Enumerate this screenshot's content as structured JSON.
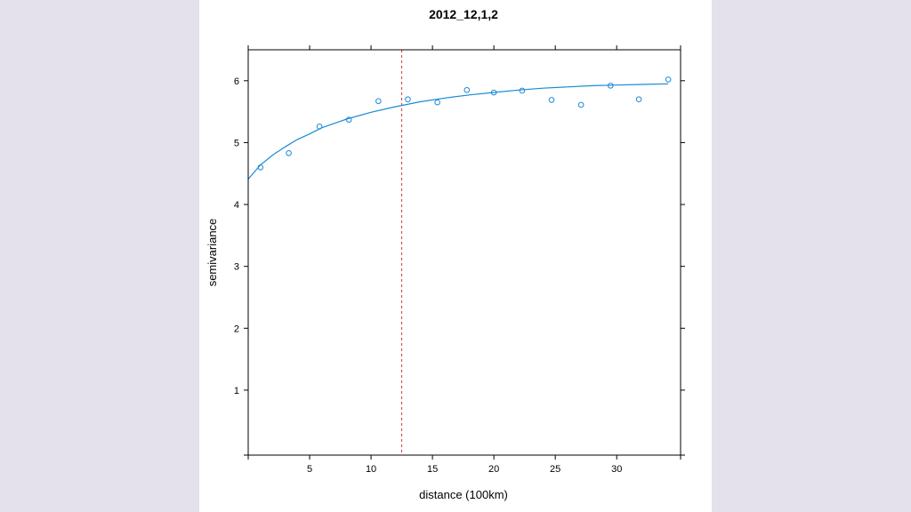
{
  "colors": {
    "page_background": "#e4e0ec",
    "plot_background": "#ffffff",
    "series": "#1a8ad4",
    "reference_line": "#e0322c"
  },
  "chart_data": {
    "type": "scatter",
    "title": "2012_12,1,2",
    "xlabel": "distance (100km)",
    "ylabel": "semivariance",
    "xlim": [
      0,
      35.2
    ],
    "ylim": [
      -0.05,
      6.5
    ],
    "x_ticks": [
      5,
      10,
      15,
      20,
      25,
      30
    ],
    "y_ticks": [
      1,
      2,
      3,
      4,
      5,
      6
    ],
    "grid": false,
    "series": [
      {
        "kind": "points",
        "x": [
          1.0,
          3.3,
          5.8,
          8.2,
          10.6,
          13.0,
          15.4,
          17.8,
          20.0,
          22.3,
          24.7,
          27.1,
          29.5,
          31.8,
          34.2
        ],
        "y": [
          4.6,
          4.83,
          5.26,
          5.37,
          5.67,
          5.7,
          5.65,
          5.85,
          5.81,
          5.84,
          5.69,
          5.61,
          5.92,
          5.7,
          6.02
        ]
      },
      {
        "kind": "fitted-curve",
        "x": [
          0,
          1,
          2,
          3,
          4,
          5,
          6,
          8,
          10,
          12,
          14,
          16,
          18,
          20,
          22,
          24,
          26,
          28,
          30,
          32,
          34.2
        ],
        "y": [
          4.41,
          4.64,
          4.8,
          4.93,
          5.05,
          5.14,
          5.24,
          5.38,
          5.49,
          5.58,
          5.66,
          5.72,
          5.77,
          5.81,
          5.85,
          5.88,
          5.9,
          5.92,
          5.93,
          5.94,
          5.95
        ]
      }
    ],
    "reference_lines": [
      {
        "orientation": "vertical",
        "x": 12.5,
        "style": "dashed"
      }
    ]
  }
}
